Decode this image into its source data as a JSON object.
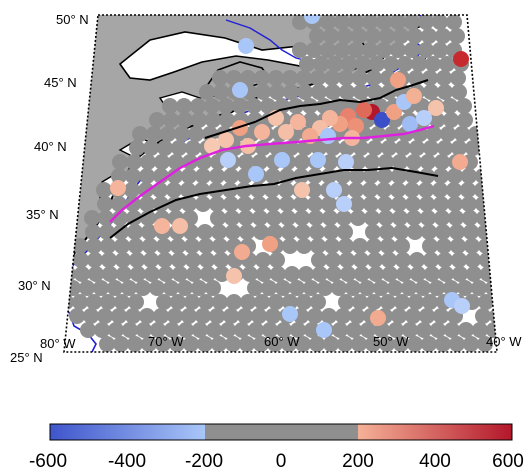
{
  "map": {
    "lat_labels": [
      "50° N",
      "45° N",
      "40° N",
      "35° N",
      "30° N",
      "25° N"
    ],
    "lon_labels": [
      "80° W",
      "70° W",
      "60° W",
      "50° W",
      "40° W"
    ],
    "colors": {
      "land": "#a6a6a6",
      "ocean": "#ffffff",
      "coast": "#000000",
      "shelf_contour": "#1f1fd6",
      "gulf_stream_path": "#e020e0",
      "front_line": "#000000",
      "neutral_marker": "#8f8f8f"
    }
  },
  "colorbar": {
    "ticks": [
      "-600",
      "-400",
      "-200",
      "0",
      "200",
      "400",
      "600"
    ],
    "min": -600,
    "max": 600,
    "segments": [
      {
        "from": -600,
        "to": -200,
        "color_start": "#3f55cc",
        "color_end": "#a9c6f8"
      },
      {
        "from": -200,
        "to": 200,
        "color_start": "#8f8f8f",
        "color_end": "#8f8f8f"
      },
      {
        "from": 200,
        "to": 600,
        "color_start": "#f5b197",
        "color_end": "#b3172a"
      }
    ]
  }
}
